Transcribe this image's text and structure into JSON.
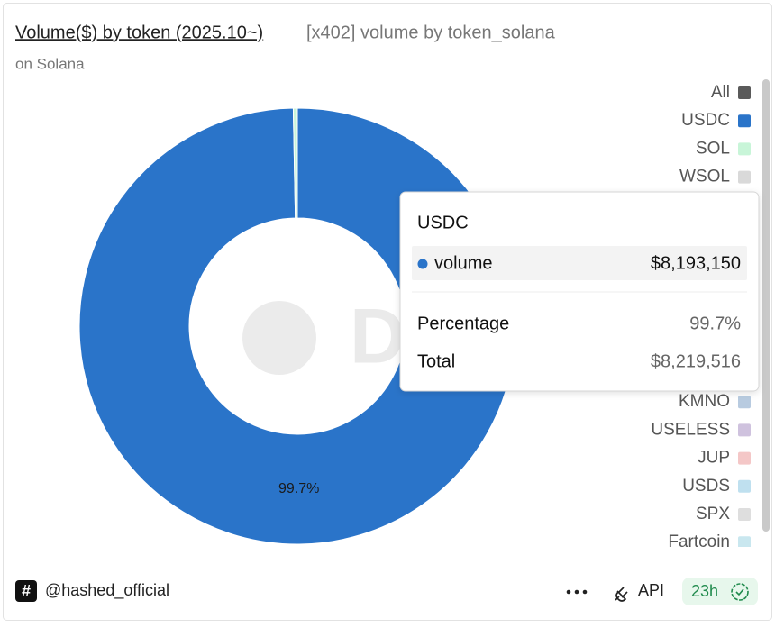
{
  "chart_data": {
    "type": "pie",
    "title": "Volume($) by token (2025.10~)",
    "query_name": "[x402] volume by token_solana",
    "subtitle": "on Solana",
    "legend_all": "All",
    "categories": [
      "USDC",
      "SOL",
      "WSOL",
      "KMNO",
      "USELESS",
      "JUP",
      "USDS",
      "SPX",
      "Fartcoin"
    ],
    "values": [
      99.7,
      0.3,
      0,
      0,
      0,
      0,
      0,
      0,
      0
    ],
    "value_labels": [
      "99.7%",
      null,
      null,
      null,
      null,
      null,
      null,
      null,
      null
    ],
    "colors": [
      "#2a74c9",
      "#c8f5d8",
      "#d9d9d9",
      "#b8cbe0",
      "#cfc2de",
      "#f4c7c7",
      "#bfe0ef",
      "#dedede",
      "#c9e7ef"
    ],
    "donut": true,
    "tooltip": {
      "title": "USDC",
      "series_name": "volume",
      "value": "$8,193,150",
      "percentage_label": "Percentage",
      "percentage": "99.7%",
      "total_label": "Total",
      "total": "$8,219,516"
    }
  },
  "footer": {
    "author": "@hashed_official",
    "api": "API",
    "age": "23h"
  }
}
